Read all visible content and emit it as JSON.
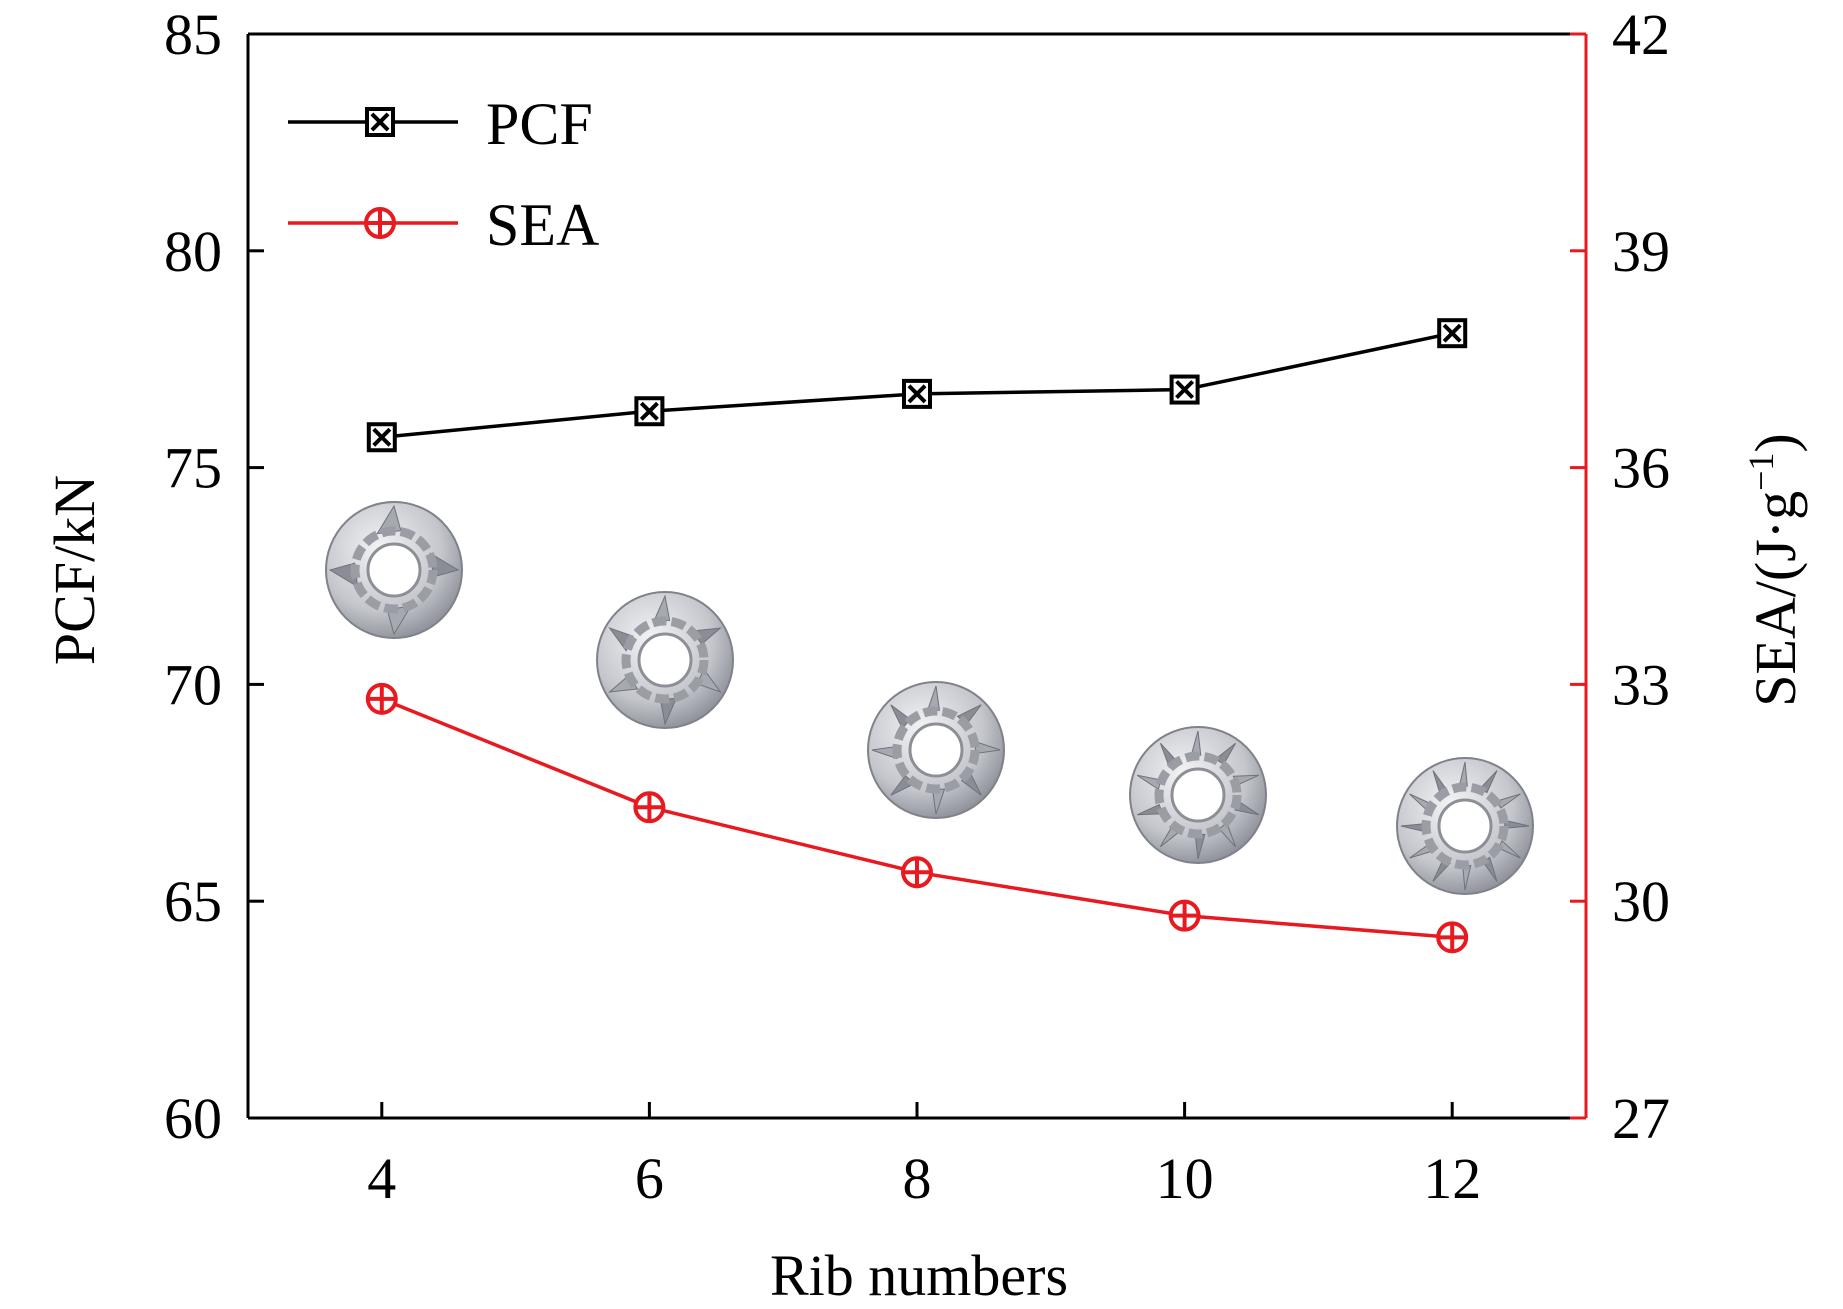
{
  "chart_data": {
    "type": "line",
    "x": [
      4,
      6,
      8,
      10,
      12
    ],
    "xlabel": "Rib numbers",
    "xlim": [
      3,
      13
    ],
    "x_ticks": [
      "4",
      "6",
      "8",
      "10",
      "12"
    ],
    "ylabel_left": "PCF/kN",
    "ylim_left": [
      60,
      85
    ],
    "y_ticks_left": [
      "60",
      "65",
      "70",
      "75",
      "80",
      "85"
    ],
    "ylabel_right": "SEA/(J·g",
    "ylabel_right_sup": "−1",
    "ylabel_right_close": ")",
    "ylim_right": [
      27,
      42
    ],
    "y_ticks_right": [
      "27",
      "30",
      "33",
      "36",
      "39",
      "42"
    ],
    "grid": false,
    "legend_position": "top-left",
    "series": [
      {
        "name": "PCF",
        "axis": "left",
        "values": [
          75.7,
          76.3,
          76.7,
          76.8,
          78.1
        ],
        "color": "#000000",
        "marker": "boxed-x"
      },
      {
        "name": "SEA",
        "axis": "right",
        "values": [
          32.8,
          31.3,
          30.4,
          29.8,
          29.5
        ],
        "color": "#e8191f",
        "marker": "circled-plus"
      }
    ],
    "insets": [
      "cross-section-4-ribs",
      "cross-section-6-ribs",
      "cross-section-8-ribs",
      "cross-section-10-ribs",
      "cross-section-12-ribs"
    ]
  }
}
